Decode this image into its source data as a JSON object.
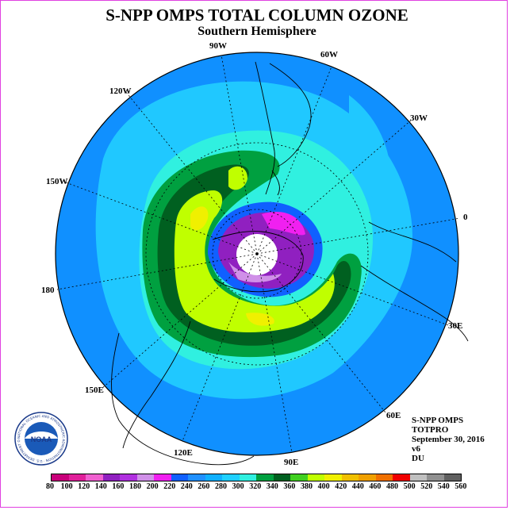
{
  "title": "S-NPP OMPS TOTAL COLUMN OZONE",
  "subtitle": "Southern Hemisphere",
  "longitude_labels": [
    "90W",
    "60W",
    "30W",
    "0",
    "30E",
    "60E",
    "90E",
    "120E",
    "150E",
    "180",
    "150W",
    "120W"
  ],
  "info": {
    "instrument": "S-NPP OMPS",
    "product": "TOTPRO",
    "date": "September 30, 2016",
    "version": "v6",
    "units": "DU"
  },
  "logo": {
    "name": "noaa-logo",
    "text": "NOAA",
    "ring_text": "NATIONAL OCEANIC AND ATMOSPHERIC ADMINISTRATION · U.S. DEPARTMENT OF COMMERCE"
  },
  "colorbar": {
    "levels": [
      "80",
      "100",
      "120",
      "140",
      "160",
      "180",
      "200",
      "220",
      "240",
      "260",
      "280",
      "300",
      "320",
      "340",
      "360",
      "380",
      "400",
      "420",
      "440",
      "460",
      "480",
      "500",
      "520",
      "540",
      "560"
    ],
    "colors": [
      "#c8007a",
      "#e0209a",
      "#f060d0",
      "#9020c0",
      "#b030e0",
      "#d090e8",
      "#f020f0",
      "#1060ff",
      "#2090ff",
      "#10b0ff",
      "#20d0ff",
      "#30f0e0",
      "#00a040",
      "#006020",
      "#40d020",
      "#c0ff00",
      "#f0f000",
      "#f0c000",
      "#f0a000",
      "#f07000",
      "#f00000",
      "#c0c0c0",
      "#909090",
      "#606060"
    ]
  }
}
